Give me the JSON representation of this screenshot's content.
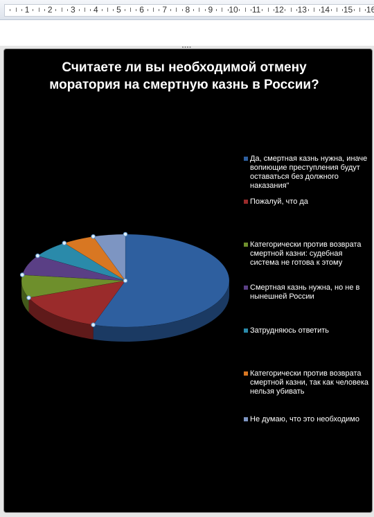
{
  "ruler": {
    "numbers": [
      "1",
      "2",
      "3",
      "4",
      "5",
      "6",
      "7",
      "8",
      "9",
      "10",
      "11",
      "12",
      "13",
      "14",
      "15",
      "16"
    ]
  },
  "chart_data": {
    "type": "pie",
    "title": "Считаете ли вы необходимой отмену моратория на смертную казнь в России?",
    "legend_position": "right",
    "three_d": true,
    "labels": [
      "Да, смертная казнь нужна, иначе вопиющие преступления будут оставаться без должного наказания\"",
      "Пожалуй, что да",
      "Категорически против возврата смертной казни: судебная система не готова к этому",
      "Смертная казнь нужна, но не в нынешней России",
      "Затрудняюсь ответить",
      "Категорически против возврата смертной казни, так как человека нельзя убивать",
      "Не думаю, что это необходимо"
    ],
    "values": [
      55,
      14,
      8,
      7,
      6,
      5,
      5
    ],
    "colors": [
      "#2e5f9f",
      "#9a2b2b",
      "#6e8f2c",
      "#5a3f85",
      "#2a8aaa",
      "#d87722",
      "#7d95c2"
    ],
    "side_colors": [
      "#1b3a63",
      "#5f1a1a",
      "#435a1b",
      "#38275a",
      "#1a5a70",
      "#8c4c14",
      "#51628a"
    ]
  }
}
